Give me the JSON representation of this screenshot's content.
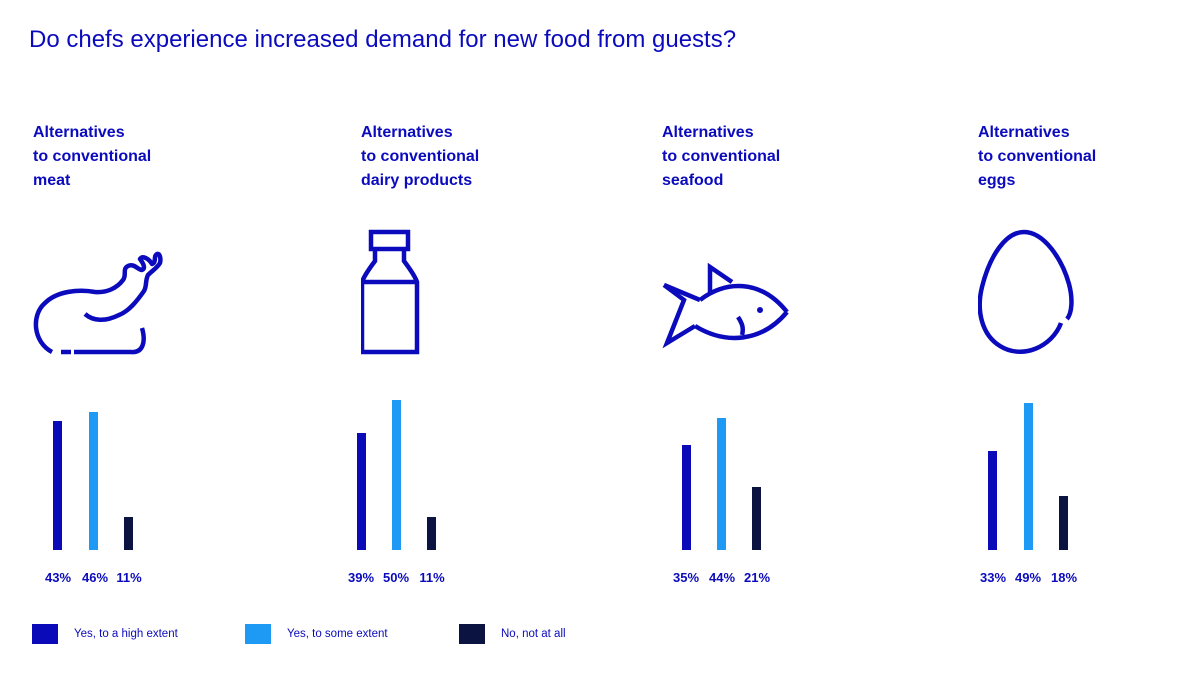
{
  "title": "Do chefs experience increased demand for new food from guests?",
  "colors": {
    "high": "#0a0ab8",
    "some": "#1e9af5",
    "none": "#0b1440",
    "text": "#0b0bbd"
  },
  "legend": [
    {
      "label": "Yes, to a high extent",
      "color": "#0a0ab8"
    },
    {
      "label": "Yes, to some extent",
      "color": "#1e9af5"
    },
    {
      "label": "No, not at all",
      "color": "#0b1440"
    }
  ],
  "groups": [
    {
      "heading": [
        "Alternatives",
        "to conventional",
        "meat"
      ],
      "icon": "chicken-leg-icon",
      "labels": [
        "43%",
        "46%",
        "11%"
      ]
    },
    {
      "heading": [
        "Alternatives",
        "to conventional",
        "dairy products"
      ],
      "icon": "milk-bottle-icon",
      "labels": [
        "39%",
        "50%",
        "11%"
      ]
    },
    {
      "heading": [
        "Alternatives",
        "to conventional",
        "seafood"
      ],
      "icon": "fish-icon",
      "labels": [
        "35%",
        "44%",
        "21%"
      ]
    },
    {
      "heading": [
        "Alternatives",
        "to conventional",
        "eggs"
      ],
      "icon": "egg-icon",
      "labels": [
        "33%",
        "49%",
        "18%"
      ]
    }
  ],
  "chart_data": {
    "type": "bar",
    "title": "Do chefs experience increased demand for new food from guests?",
    "categories": [
      "Alternatives to conventional meat",
      "Alternatives to conventional dairy products",
      "Alternatives to conventional seafood",
      "Alternatives to conventional eggs"
    ],
    "series": [
      {
        "name": "Yes, to a high extent",
        "values": [
          43,
          39,
          35,
          33
        ]
      },
      {
        "name": "Yes, to some extent",
        "values": [
          46,
          50,
          44,
          49
        ]
      },
      {
        "name": "No, not at all",
        "values": [
          11,
          11,
          21,
          18
        ]
      }
    ],
    "unit": "%",
    "ylim": [
      0,
      50
    ],
    "grid": false,
    "legend_position": "bottom-left",
    "xlabel": "",
    "ylabel": ""
  }
}
